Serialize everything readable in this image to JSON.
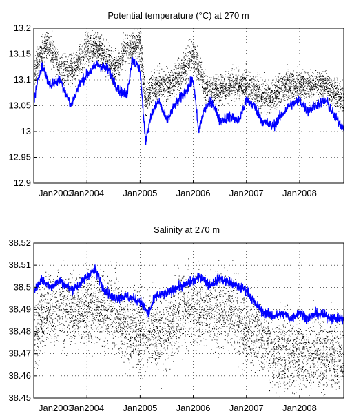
{
  "chart_data": [
    {
      "type": "scatter",
      "title": "Potential temperature (°C) at 270 m",
      "xlabel": "",
      "ylabel": "",
      "x_tick_labels": [
        "Jan2003",
        "Jan2004",
        "Jan2005",
        "Jan2006",
        "Jan2007",
        "Jan2008"
      ],
      "x_tick_values": [
        2003,
        2004,
        2005,
        2006,
        2007,
        2008
      ],
      "xlim": [
        2003.0,
        2008.83
      ],
      "y_tick_labels": [
        "12.9",
        "12.95",
        "13",
        "13.05",
        "13.1",
        "13.15",
        "13.2"
      ],
      "y_tick_values": [
        12.9,
        12.95,
        13.0,
        13.05,
        13.1,
        13.15,
        13.2
      ],
      "ylim": [
        12.9,
        13.2
      ],
      "grid": true,
      "colors": {
        "raw": "#000000",
        "smoothed": "#0000ff"
      },
      "series": [
        {
          "style": "black-dots",
          "x": [
            2003.0,
            2003.25,
            2003.5,
            2003.75,
            2004.0,
            2004.25,
            2004.5,
            2004.75,
            2005.0,
            2005.1,
            2005.25,
            2005.5,
            2005.75,
            2006.0,
            2006.25,
            2006.5,
            2006.75,
            2007.0,
            2007.25,
            2007.5,
            2007.75,
            2008.0,
            2008.25,
            2008.5,
            2008.8
          ],
          "y": [
            13.12,
            13.17,
            13.12,
            13.12,
            13.16,
            13.16,
            13.12,
            13.16,
            13.17,
            13.06,
            13.09,
            13.09,
            13.11,
            13.15,
            13.08,
            13.08,
            13.09,
            13.09,
            13.07,
            13.07,
            13.09,
            13.09,
            13.09,
            13.09,
            13.06
          ],
          "spread": 0.05
        },
        {
          "style": "blue-line",
          "x": [
            2003.0,
            2003.15,
            2003.3,
            2003.5,
            2003.7,
            2003.85,
            2004.0,
            2004.2,
            2004.4,
            2004.6,
            2004.75,
            2004.85,
            2005.0,
            2005.1,
            2005.2,
            2005.35,
            2005.5,
            2005.65,
            2005.8,
            2006.0,
            2006.1,
            2006.2,
            2006.35,
            2006.5,
            2006.7,
            2006.85,
            2007.0,
            2007.15,
            2007.3,
            2007.5,
            2007.65,
            2007.8,
            2008.0,
            2008.15,
            2008.3,
            2008.5,
            2008.65,
            2008.8
          ],
          "y": [
            13.06,
            13.13,
            13.09,
            13.1,
            13.05,
            13.09,
            13.11,
            13.13,
            13.12,
            13.08,
            13.07,
            13.14,
            13.12,
            12.98,
            13.03,
            13.06,
            13.02,
            13.05,
            13.07,
            13.1,
            13.0,
            13.04,
            13.06,
            13.02,
            13.03,
            13.02,
            13.06,
            13.05,
            13.02,
            13.01,
            13.03,
            13.05,
            13.06,
            13.04,
            13.05,
            13.06,
            13.03,
            13.01
          ],
          "noise": 0.018
        }
      ]
    },
    {
      "type": "scatter",
      "title": "Salinity at 270 m",
      "xlabel": "",
      "ylabel": "",
      "x_tick_labels": [
        "Jan2003",
        "Jan2004",
        "Jan2005",
        "Jan2006",
        "Jan2007",
        "Jan2008"
      ],
      "x_tick_values": [
        2003,
        2004,
        2005,
        2006,
        2007,
        2008
      ],
      "xlim": [
        2003.0,
        2008.83
      ],
      "y_tick_labels": [
        "38.45",
        "38.46",
        "38.47",
        "38.48",
        "38.49",
        "38.5",
        "38.51",
        "38.52"
      ],
      "y_tick_values": [
        38.45,
        38.46,
        38.47,
        38.48,
        38.49,
        38.5,
        38.51,
        38.52
      ],
      "ylim": [
        38.45,
        38.52
      ],
      "grid": true,
      "colors": {
        "raw": "#000000",
        "smoothed": "#0000ff"
      },
      "series": [
        {
          "style": "black-dots",
          "x": [
            2003.0,
            2003.25,
            2003.5,
            2003.75,
            2004.0,
            2004.25,
            2004.5,
            2004.75,
            2005.0,
            2005.25,
            2005.5,
            2005.75,
            2006.0,
            2006.25,
            2006.5,
            2006.75,
            2007.0,
            2007.25,
            2007.5,
            2007.75,
            2008.0,
            2008.25,
            2008.5,
            2008.8
          ],
          "y": [
            38.48,
            38.49,
            38.49,
            38.49,
            38.49,
            38.49,
            38.49,
            38.48,
            38.48,
            38.48,
            38.48,
            38.49,
            38.49,
            38.49,
            38.49,
            38.49,
            38.48,
            38.48,
            38.47,
            38.47,
            38.47,
            38.47,
            38.47,
            38.47
          ],
          "spread": 0.028
        },
        {
          "style": "blue-line",
          "x": [
            2003.0,
            2003.15,
            2003.3,
            2003.5,
            2003.7,
            2003.85,
            2004.0,
            2004.15,
            2004.3,
            2004.5,
            2004.7,
            2004.85,
            2005.0,
            2005.15,
            2005.3,
            2005.5,
            2005.7,
            2005.85,
            2006.0,
            2006.15,
            2006.3,
            2006.5,
            2006.7,
            2006.85,
            2007.0,
            2007.15,
            2007.3,
            2007.5,
            2007.7,
            2007.85,
            2008.0,
            2008.15,
            2008.3,
            2008.5,
            2008.65,
            2008.8
          ],
          "y": [
            38.498,
            38.504,
            38.5,
            38.503,
            38.499,
            38.501,
            38.505,
            38.508,
            38.5,
            38.495,
            38.496,
            38.495,
            38.494,
            38.488,
            38.496,
            38.497,
            38.5,
            38.501,
            38.503,
            38.505,
            38.501,
            38.504,
            38.502,
            38.5,
            38.499,
            38.493,
            38.489,
            38.487,
            38.488,
            38.486,
            38.489,
            38.486,
            38.488,
            38.487,
            38.486,
            38.486
          ],
          "noise": 0.004
        }
      ]
    }
  ]
}
